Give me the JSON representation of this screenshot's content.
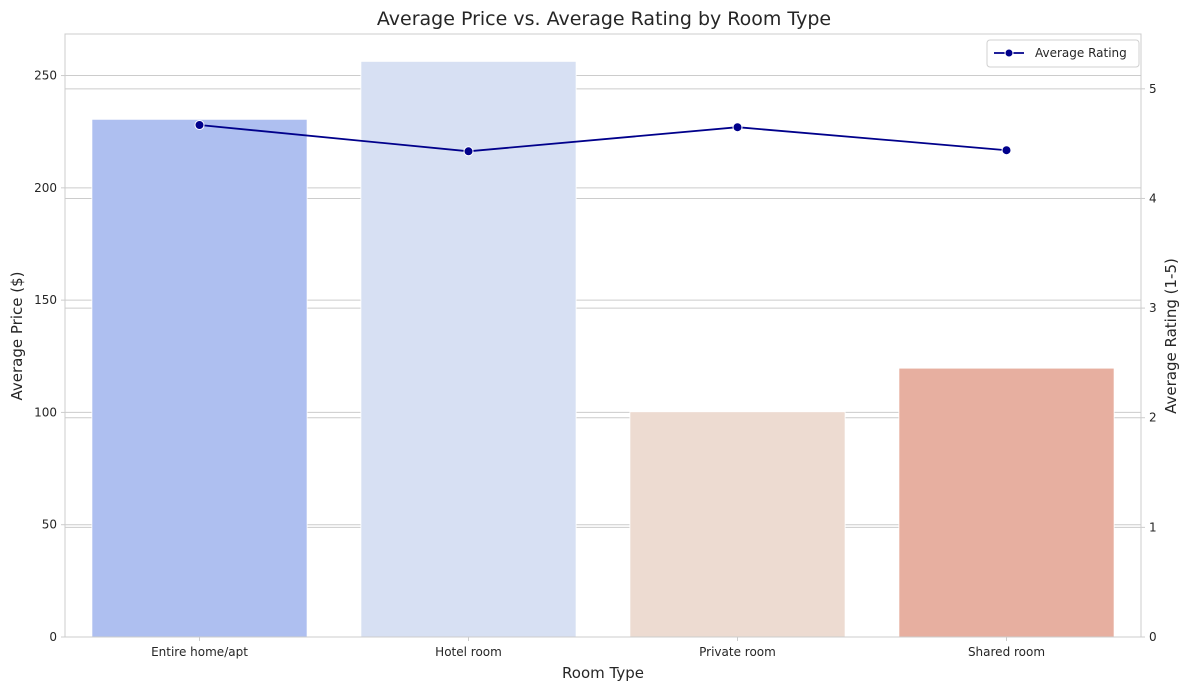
{
  "chart_data": {
    "type": "bar",
    "title": "Average Price vs. Average Rating by Room Type",
    "xlabel": "Room Type",
    "ylabel": "Average Price ($)",
    "y2label": "Average Rating (1-5)",
    "categories": [
      "Entire home/apt",
      "Hotel room",
      "Private room",
      "Shared room"
    ],
    "series": [
      {
        "type": "bar",
        "axis": "left",
        "values": [
          230.5,
          256.3,
          100.3,
          119.7
        ],
        "colors": [
          "#aebff0",
          "#d7e0f3",
          "#eddbd1",
          "#e7afa0"
        ]
      },
      {
        "type": "line",
        "axis": "right",
        "name": "Average Rating",
        "values": [
          4.67,
          4.43,
          4.65,
          4.44
        ],
        "color": "#00008b"
      }
    ],
    "ylim": [
      0,
      268.5
    ],
    "y2lim": [
      0,
      5.5
    ],
    "yticks": [
      "0",
      "50",
      "100",
      "150",
      "200",
      "250"
    ],
    "y2ticks": [
      "0",
      "1",
      "2",
      "3",
      "4",
      "5"
    ],
    "grid": true,
    "legend_position": "top-right"
  }
}
